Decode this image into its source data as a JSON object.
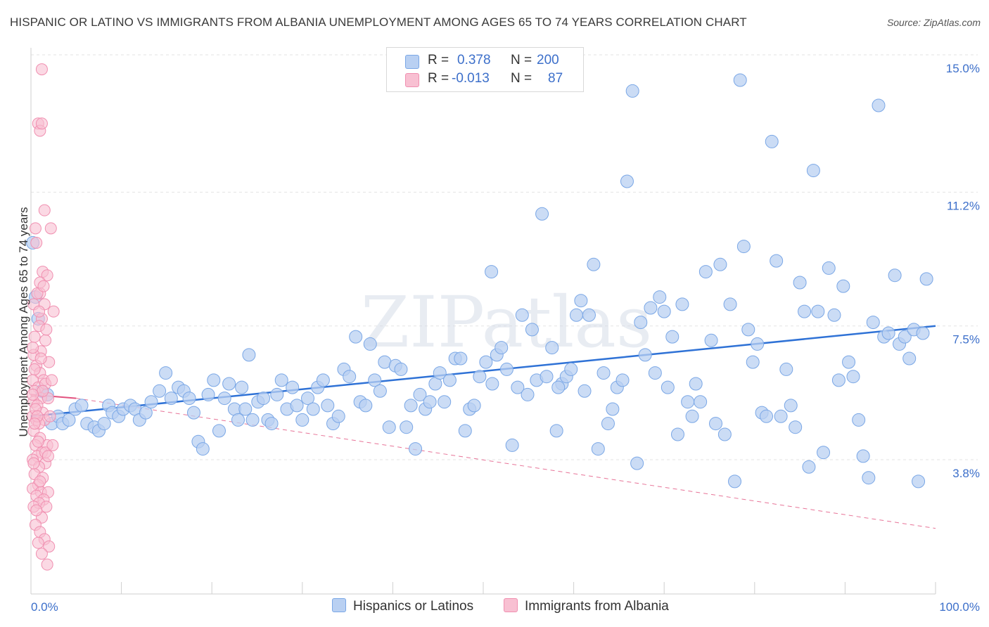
{
  "title": "HISPANIC OR LATINO VS IMMIGRANTS FROM ALBANIA UNEMPLOYMENT AMONG AGES 65 TO 74 YEARS CORRELATION CHART",
  "source": "Source: ZipAtlas.com",
  "watermark": "ZIPatlas",
  "legend": {
    "rows": [
      {
        "r_label": "R =",
        "r_value": "0.378",
        "n_label": "N =",
        "n_value": "200"
      },
      {
        "r_label": "R =",
        "r_value": "-0.013",
        "n_label": "N =",
        "n_value": "87"
      }
    ]
  },
  "bottom_legend": [
    "Hispanics or Latinos",
    "Immigrants from Albania"
  ],
  "chart_data": {
    "type": "scatter",
    "title": "HISPANIC OR LATINO VS IMMIGRANTS FROM ALBANIA UNEMPLOYMENT AMONG AGES 65 TO 74 YEARS CORRELATION CHART",
    "xlabel": "",
    "ylabel": "Unemployment Among Ages 65 to 74 years",
    "xlim": [
      0,
      100
    ],
    "ylim": [
      0,
      15.5
    ],
    "x_tick_labels": [
      "0.0%",
      "100.0%"
    ],
    "y_ticks": [
      3.8,
      7.5,
      11.2,
      15.0
    ],
    "y_tick_labels": [
      "3.8%",
      "7.5%",
      "11.2%",
      "15.0%"
    ],
    "grid": "horizontal dashed",
    "legend_position": "top-center",
    "series": [
      {
        "name": "Hispanics or Latinos",
        "color": "#7aa7e6",
        "fill": "#b9d0f2",
        "line_color": "#2f72d6",
        "R": 0.378,
        "N": 200,
        "trend": {
          "x": [
            0,
            100
          ],
          "y": [
            5.0,
            7.5
          ]
        },
        "points": [
          [
            0.2,
            9.8
          ],
          [
            0.5,
            8.3
          ],
          [
            0.8,
            7.7
          ],
          [
            1.2,
            5.7
          ],
          [
            1.8,
            5.6
          ],
          [
            2.3,
            4.8
          ],
          [
            3.0,
            5.0
          ],
          [
            3.5,
            4.8
          ],
          [
            4.2,
            4.9
          ],
          [
            4.9,
            5.2
          ],
          [
            5.6,
            5.3
          ],
          [
            6.2,
            4.8
          ],
          [
            7.0,
            4.7
          ],
          [
            7.5,
            4.6
          ],
          [
            8.1,
            4.8
          ],
          [
            8.6,
            5.3
          ],
          [
            9.0,
            5.1
          ],
          [
            9.7,
            5.0
          ],
          [
            10.2,
            5.2
          ],
          [
            11.0,
            5.3
          ],
          [
            11.5,
            5.2
          ],
          [
            12.0,
            4.9
          ],
          [
            12.7,
            5.1
          ],
          [
            13.3,
            5.4
          ],
          [
            14.2,
            5.7
          ],
          [
            14.9,
            6.2
          ],
          [
            15.5,
            5.5
          ],
          [
            16.3,
            5.8
          ],
          [
            16.9,
            5.7
          ],
          [
            17.5,
            5.5
          ],
          [
            18.0,
            5.1
          ],
          [
            18.5,
            4.3
          ],
          [
            19.0,
            4.1
          ],
          [
            19.6,
            5.6
          ],
          [
            20.2,
            6.0
          ],
          [
            20.8,
            4.6
          ],
          [
            21.4,
            5.5
          ],
          [
            21.9,
            5.9
          ],
          [
            22.5,
            5.2
          ],
          [
            22.9,
            4.9
          ],
          [
            23.3,
            5.8
          ],
          [
            23.7,
            5.2
          ],
          [
            24.1,
            6.7
          ],
          [
            24.5,
            4.9
          ],
          [
            25.1,
            5.4
          ],
          [
            25.7,
            5.5
          ],
          [
            26.2,
            4.9
          ],
          [
            26.6,
            4.8
          ],
          [
            27.2,
            5.6
          ],
          [
            27.7,
            6.0
          ],
          [
            28.3,
            5.2
          ],
          [
            28.9,
            5.8
          ],
          [
            29.4,
            5.3
          ],
          [
            30.0,
            4.9
          ],
          [
            30.6,
            5.5
          ],
          [
            31.2,
            5.2
          ],
          [
            31.7,
            5.8
          ],
          [
            32.3,
            6.0
          ],
          [
            32.8,
            5.3
          ],
          [
            33.4,
            4.8
          ],
          [
            34.0,
            5.0
          ],
          [
            34.6,
            6.3
          ],
          [
            35.2,
            6.1
          ],
          [
            35.9,
            7.2
          ],
          [
            36.4,
            5.4
          ],
          [
            37.0,
            5.3
          ],
          [
            37.5,
            7.0
          ],
          [
            38.0,
            6.0
          ],
          [
            38.6,
            5.7
          ],
          [
            39.1,
            6.5
          ],
          [
            39.6,
            4.7
          ],
          [
            40.3,
            6.4
          ],
          [
            40.9,
            6.3
          ],
          [
            41.5,
            4.7
          ],
          [
            42.0,
            5.3
          ],
          [
            42.5,
            4.1
          ],
          [
            43.0,
            5.6
          ],
          [
            43.6,
            5.2
          ],
          [
            44.1,
            5.4
          ],
          [
            44.7,
            5.9
          ],
          [
            45.2,
            6.2
          ],
          [
            45.7,
            5.4
          ],
          [
            46.3,
            6.0
          ],
          [
            46.9,
            6.6
          ],
          [
            47.5,
            6.6
          ],
          [
            48.0,
            4.6
          ],
          [
            48.5,
            5.2
          ],
          [
            49.0,
            5.3
          ],
          [
            49.6,
            6.1
          ],
          [
            50.3,
            6.5
          ],
          [
            50.9,
            9.0
          ],
          [
            51.5,
            6.7
          ],
          [
            52.0,
            6.9
          ],
          [
            52.6,
            6.3
          ],
          [
            53.2,
            4.2
          ],
          [
            53.8,
            5.8
          ],
          [
            54.3,
            7.8
          ],
          [
            54.9,
            5.6
          ],
          [
            55.4,
            7.4
          ],
          [
            55.9,
            6.0
          ],
          [
            56.5,
            10.6
          ],
          [
            57.0,
            6.1
          ],
          [
            57.6,
            6.9
          ],
          [
            58.1,
            4.6
          ],
          [
            58.7,
            5.9
          ],
          [
            59.2,
            6.1
          ],
          [
            59.7,
            6.3
          ],
          [
            60.3,
            7.8
          ],
          [
            60.8,
            8.2
          ],
          [
            61.2,
            5.7
          ],
          [
            61.7,
            7.8
          ],
          [
            62.2,
            9.2
          ],
          [
            62.7,
            4.1
          ],
          [
            63.3,
            6.2
          ],
          [
            63.8,
            4.8
          ],
          [
            64.3,
            5.2
          ],
          [
            64.8,
            5.8
          ],
          [
            65.4,
            6.0
          ],
          [
            65.9,
            11.5
          ],
          [
            66.5,
            14.0
          ],
          [
            67.0,
            3.7
          ],
          [
            67.4,
            7.6
          ],
          [
            67.9,
            6.7
          ],
          [
            68.5,
            8.0
          ],
          [
            69.0,
            6.2
          ],
          [
            69.5,
            8.3
          ],
          [
            70.0,
            7.9
          ],
          [
            70.4,
            5.8
          ],
          [
            70.9,
            7.2
          ],
          [
            71.5,
            4.5
          ],
          [
            72.0,
            8.1
          ],
          [
            72.6,
            5.4
          ],
          [
            73.1,
            5.0
          ],
          [
            73.5,
            5.9
          ],
          [
            74.0,
            5.4
          ],
          [
            74.6,
            9.0
          ],
          [
            75.2,
            7.1
          ],
          [
            75.7,
            4.8
          ],
          [
            76.2,
            9.2
          ],
          [
            76.7,
            4.5
          ],
          [
            77.3,
            8.1
          ],
          [
            77.8,
            3.2
          ],
          [
            78.4,
            14.3
          ],
          [
            78.8,
            9.7
          ],
          [
            79.3,
            7.4
          ],
          [
            79.8,
            6.5
          ],
          [
            80.3,
            7.0
          ],
          [
            80.8,
            5.1
          ],
          [
            81.3,
            5.0
          ],
          [
            81.9,
            12.6
          ],
          [
            82.4,
            9.3
          ],
          [
            82.9,
            5.0
          ],
          [
            83.5,
            6.3
          ],
          [
            84.0,
            5.3
          ],
          [
            84.5,
            4.7
          ],
          [
            85.0,
            8.7
          ],
          [
            85.5,
            7.9
          ],
          [
            86.0,
            3.6
          ],
          [
            86.5,
            11.8
          ],
          [
            87.0,
            7.9
          ],
          [
            87.6,
            4.0
          ],
          [
            88.2,
            9.1
          ],
          [
            88.8,
            7.8
          ],
          [
            89.3,
            6.0
          ],
          [
            89.8,
            8.6
          ],
          [
            90.4,
            6.5
          ],
          [
            90.9,
            6.1
          ],
          [
            91.5,
            4.9
          ],
          [
            92.0,
            3.9
          ],
          [
            92.6,
            3.3
          ],
          [
            93.1,
            7.6
          ],
          [
            93.7,
            13.6
          ],
          [
            94.3,
            7.2
          ],
          [
            94.8,
            7.3
          ],
          [
            95.5,
            8.9
          ],
          [
            96.0,
            7.0
          ],
          [
            96.6,
            7.2
          ],
          [
            97.1,
            6.6
          ],
          [
            97.6,
            7.4
          ],
          [
            98.1,
            3.2
          ],
          [
            98.6,
            7.3
          ],
          [
            99.0,
            8.8
          ],
          [
            58.3,
            5.8
          ],
          [
            51.0,
            5.9
          ]
        ]
      },
      {
        "name": "Immigrants from Albania",
        "color": "#f08fb0",
        "fill": "#f8c0d2",
        "line_color": "#e2527f",
        "R": -0.013,
        "N": 87,
        "trend_solid": {
          "x": [
            0,
            5
          ],
          "y": [
            5.6,
            5.5
          ]
        },
        "trend_dashed": {
          "x": [
            5,
            100
          ],
          "y": [
            5.5,
            1.9
          ]
        },
        "points": [
          [
            1.2,
            14.6
          ],
          [
            0.8,
            13.1
          ],
          [
            1.0,
            12.9
          ],
          [
            1.2,
            13.1
          ],
          [
            1.5,
            10.7
          ],
          [
            0.5,
            10.2
          ],
          [
            2.2,
            10.2
          ],
          [
            0.6,
            9.8
          ],
          [
            1.3,
            9.0
          ],
          [
            1.0,
            8.4
          ],
          [
            1.8,
            8.9
          ],
          [
            1.0,
            8.7
          ],
          [
            0.7,
            8.4
          ],
          [
            0.3,
            8.1
          ],
          [
            1.5,
            8.1
          ],
          [
            1.2,
            7.7
          ],
          [
            2.5,
            7.9
          ],
          [
            0.9,
            7.5
          ],
          [
            0.4,
            7.2
          ],
          [
            1.6,
            7.1
          ],
          [
            1.1,
            6.8
          ],
          [
            0.3,
            6.7
          ],
          [
            2.0,
            6.5
          ],
          [
            0.6,
            6.4
          ],
          [
            1.0,
            6.2
          ],
          [
            1.4,
            6.0
          ],
          [
            0.2,
            6.0
          ],
          [
            0.8,
            5.8
          ],
          [
            1.6,
            5.9
          ],
          [
            0.4,
            5.7
          ],
          [
            1.1,
            5.5
          ],
          [
            0.3,
            5.4
          ],
          [
            1.9,
            5.5
          ],
          [
            0.7,
            5.3
          ],
          [
            1.3,
            5.1
          ],
          [
            0.2,
            5.0
          ],
          [
            0.6,
            4.9
          ],
          [
            1.5,
            4.9
          ],
          [
            0.9,
            4.8
          ],
          [
            0.3,
            4.6
          ],
          [
            1.0,
            4.4
          ],
          [
            1.8,
            4.2
          ],
          [
            0.5,
            4.2
          ],
          [
            1.2,
            4.0
          ],
          [
            0.7,
            3.9
          ],
          [
            0.2,
            3.8
          ],
          [
            1.6,
            3.7
          ],
          [
            0.9,
            3.6
          ],
          [
            0.4,
            3.4
          ],
          [
            1.3,
            3.3
          ],
          [
            0.8,
            3.1
          ],
          [
            0.2,
            3.0
          ],
          [
            1.1,
            2.9
          ],
          [
            1.9,
            2.9
          ],
          [
            0.6,
            2.8
          ],
          [
            1.4,
            2.7
          ],
          [
            0.9,
            2.6
          ],
          [
            0.3,
            2.5
          ],
          [
            1.7,
            2.5
          ],
          [
            1.2,
            2.2
          ],
          [
            0.5,
            2.0
          ],
          [
            1.0,
            1.8
          ],
          [
            1.5,
            1.6
          ],
          [
            0.8,
            1.5
          ],
          [
            2.0,
            1.4
          ],
          [
            1.2,
            1.2
          ],
          [
            1.8,
            0.9
          ],
          [
            0.4,
            6.3
          ],
          [
            2.3,
            6.0
          ],
          [
            1.7,
            7.4
          ],
          [
            0.9,
            7.9
          ],
          [
            0.2,
            6.9
          ],
          [
            1.3,
            5.7
          ],
          [
            0.5,
            5.2
          ],
          [
            2.1,
            5.0
          ],
          [
            0.8,
            4.3
          ],
          [
            1.6,
            4.0
          ],
          [
            0.3,
            3.7
          ],
          [
            1.0,
            3.2
          ],
          [
            2.4,
            4.2
          ],
          [
            0.6,
            2.4
          ],
          [
            1.4,
            8.6
          ],
          [
            0.2,
            5.6
          ],
          [
            1.1,
            6.6
          ],
          [
            0.7,
            5.0
          ],
          [
            1.9,
            3.9
          ],
          [
            0.4,
            4.8
          ]
        ]
      }
    ]
  }
}
